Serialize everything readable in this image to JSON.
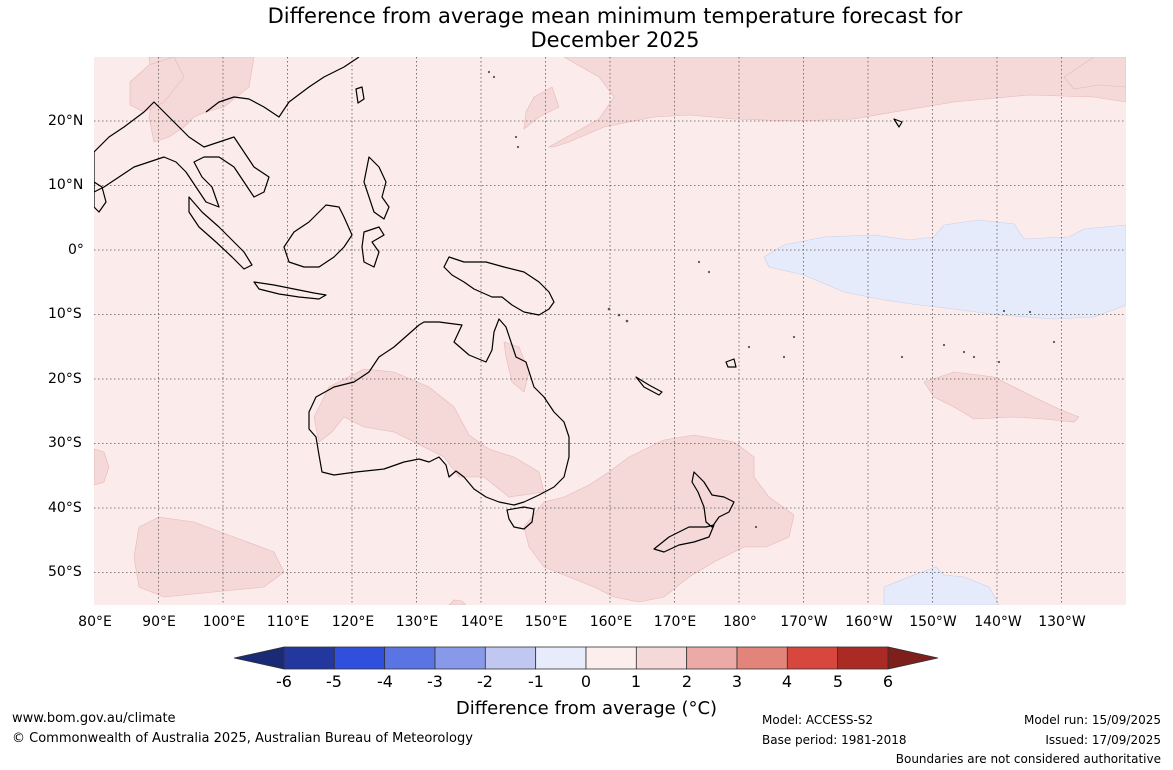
{
  "title_line1": "Difference from average mean minimum temperature forecast for",
  "title_line2": "December 2025",
  "lon_labels": [
    "80°E",
    "90°E",
    "100°E",
    "110°E",
    "120°E",
    "130°E",
    "140°E",
    "150°E",
    "160°E",
    "170°E",
    "180°",
    "170°W",
    "160°W",
    "150°W",
    "140°W",
    "130°W"
  ],
  "lat_labels": [
    "20°N",
    "10°N",
    "0°",
    "10°S",
    "20°S",
    "30°S",
    "40°S",
    "50°S"
  ],
  "colorbar": {
    "ticks": [
      "-6",
      "-5",
      "-4",
      "-3",
      "-2",
      "-1",
      "0",
      "1",
      "2",
      "3",
      "4",
      "5",
      "6"
    ],
    "colors": [
      "#23389e",
      "#2f4fdc",
      "#5a75e3",
      "#8799e8",
      "#c0c8f1",
      "#e7ebfb",
      "#fdeeee",
      "#f5d8d8",
      "#ebaaa5",
      "#e28479",
      "#d8473d",
      "#ab2b24"
    ],
    "under_color": "#1a2a74",
    "over_color": "#7e1f1b",
    "label": "Difference from average (°C)"
  },
  "footer": {
    "url": "www.bom.gov.au/climate",
    "copyright": "© Commonwealth of Australia 2025, Australian Bureau of Meteorology",
    "model": "Model: ACCESS-S2",
    "base_period": "Base period: 1981-2018",
    "model_run": "Model run: 15/09/2025",
    "issued": "Issued: 17/09/2025",
    "disclaimer": "Boundaries are not considered authoritative"
  }
}
